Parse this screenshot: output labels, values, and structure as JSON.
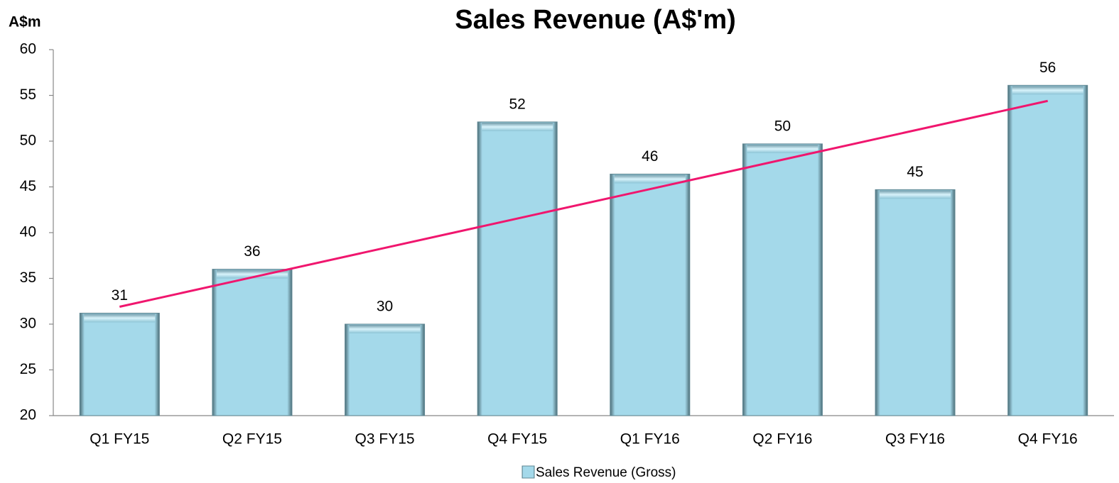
{
  "chart_data": {
    "type": "bar",
    "title": "Sales Revenue (A$'m)",
    "y_label": "A$m",
    "categories": [
      "Q1 FY15",
      "Q2 FY15",
      "Q3 FY15",
      "Q4 FY15",
      "Q1 FY16",
      "Q2 FY16",
      "Q3 FY16",
      "Q4 FY16"
    ],
    "series": [
      {
        "name": "Sales Revenue (Gross)",
        "color": "#a4d9ea",
        "values": [
          31.2,
          36.0,
          30.0,
          52.1,
          46.4,
          49.7,
          44.7,
          56.1
        ],
        "value_labels": [
          "31",
          "36",
          "30",
          "52",
          "46",
          "50",
          "45",
          "56"
        ]
      }
    ],
    "trendline": {
      "color": "#f0166e",
      "values": [
        31.9,
        54.4
      ]
    },
    "ylim": [
      20,
      60
    ],
    "yticks": [
      20,
      25,
      30,
      35,
      40,
      45,
      50,
      55,
      60
    ],
    "grid": false,
    "legend": "bottom"
  }
}
